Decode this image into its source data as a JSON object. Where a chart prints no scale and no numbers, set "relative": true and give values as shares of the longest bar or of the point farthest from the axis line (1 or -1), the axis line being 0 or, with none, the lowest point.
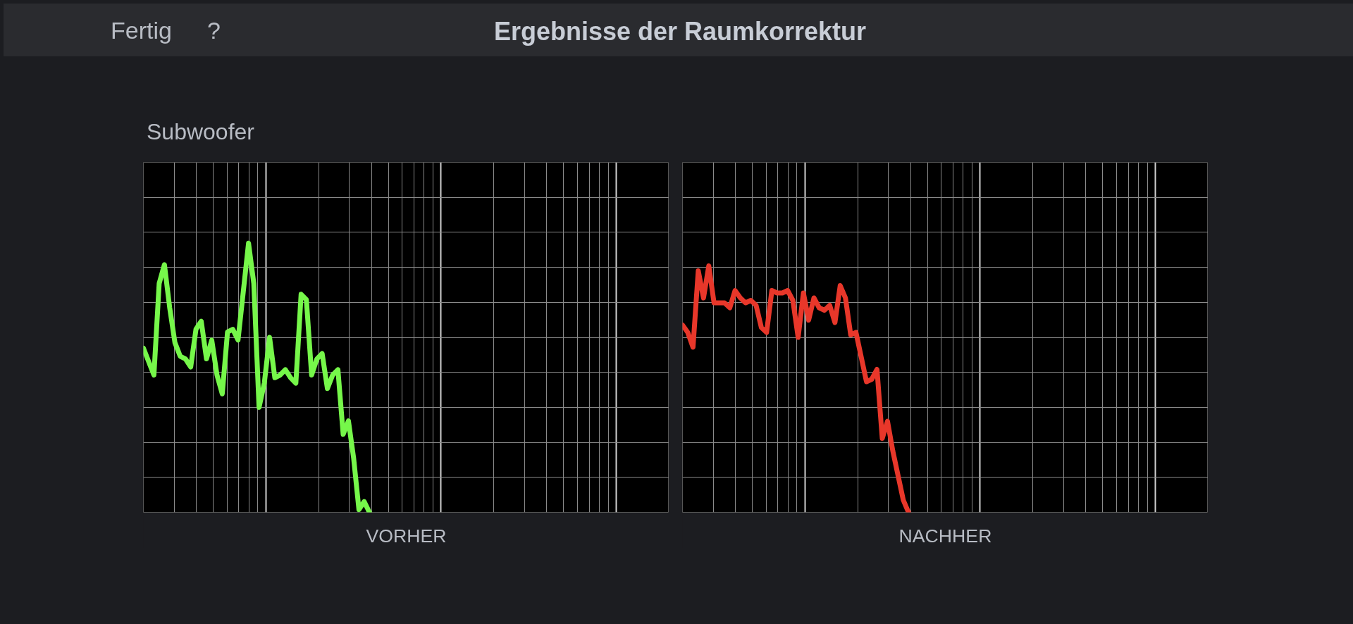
{
  "chart_data": [
    {
      "type": "line",
      "title": "Ergebnisse der Raumkorrektur",
      "subtitle": "Subwoofer",
      "annotations": [
        "Fertig",
        "?"
      ],
      "xlabel": "VORHER",
      "relative": true,
      "grid": true,
      "categories": [
        null,
        null,
        null,
        null,
        null,
        null,
        null,
        null,
        null,
        null,
        null,
        null,
        null,
        null,
        null,
        null,
        null,
        null,
        null,
        null,
        null,
        null,
        null,
        null,
        null,
        null,
        null,
        null,
        null,
        null,
        null,
        null,
        null,
        null,
        null,
        null,
        null,
        null,
        null,
        null,
        null,
        null,
        null,
        null,
        null,
        null,
        null,
        null,
        null,
        null,
        null,
        null,
        null,
        null,
        null,
        null,
        null,
        null,
        null,
        null,
        null,
        null,
        null,
        null,
        null,
        null,
        null,
        null,
        null,
        null,
        null,
        null,
        null,
        null,
        null,
        null,
        null,
        null,
        null,
        null,
        null,
        null,
        null,
        null,
        null,
        null,
        null,
        null,
        null,
        null,
        null,
        null,
        null,
        null,
        null,
        null,
        null,
        null,
        null,
        null,
        null
      ],
      "series": [
        {
          "color": "#76f74a",
          "values": [
            0.61,
            0.56,
            0.51,
            0.85,
            0.92,
            0.76,
            0.63,
            0.58,
            0.57,
            0.54,
            0.68,
            0.71,
            0.57,
            0.64,
            0.51,
            0.44,
            0.67,
            0.68,
            0.64,
            0.82,
            1.0,
            0.85,
            0.39,
            0.48,
            0.65,
            0.5,
            0.51,
            0.53,
            0.5,
            0.48,
            0.81,
            0.79,
            0.51,
            0.57,
            0.59,
            0.46,
            0.51,
            0.53,
            0.29,
            0.34,
            0.2,
            0.01,
            0.04,
            0,
            null,
            null,
            null,
            null,
            null,
            null,
            null,
            null,
            null,
            null,
            null,
            null,
            null,
            null,
            null,
            null,
            null,
            null,
            null,
            null,
            null,
            null,
            null,
            null,
            null,
            null,
            null,
            null,
            null,
            null,
            null,
            null,
            null,
            null,
            null,
            null,
            null,
            null,
            null,
            null,
            null,
            null,
            null,
            null,
            null,
            null,
            null,
            null,
            null,
            null,
            null,
            null,
            null,
            null,
            null,
            null,
            null
          ]
        }
      ]
    },
    {
      "type": "line",
      "xlabel": "NACHHER",
      "relative": true,
      "grid": true,
      "categories": [
        null,
        null,
        null,
        null,
        null,
        null,
        null,
        null,
        null,
        null,
        null,
        null,
        null,
        null,
        null,
        null,
        null,
        null,
        null,
        null,
        null,
        null,
        null,
        null,
        null,
        null,
        null,
        null,
        null,
        null,
        null,
        null,
        null,
        null,
        null,
        null,
        null,
        null,
        null,
        null,
        null,
        null,
        null,
        null,
        null,
        null,
        null,
        null,
        null,
        null,
        null,
        null,
        null,
        null,
        null,
        null,
        null,
        null,
        null,
        null,
        null,
        null,
        null,
        null,
        null,
        null,
        null,
        null,
        null,
        null,
        null,
        null,
        null,
        null,
        null,
        null,
        null,
        null,
        null,
        null,
        null,
        null,
        null,
        null,
        null,
        null,
        null,
        null,
        null,
        null,
        null,
        null,
        null,
        null,
        null,
        null,
        null,
        null,
        null,
        null,
        null
      ],
      "series": [
        {
          "color": "#e8372a",
          "values": [
            0.76,
            0.73,
            0.67,
            0.98,
            0.87,
            1.0,
            0.85,
            0.85,
            0.85,
            0.83,
            0.9,
            0.87,
            0.85,
            0.86,
            0.84,
            0.75,
            0.73,
            0.9,
            0.89,
            0.89,
            0.9,
            0.86,
            0.71,
            0.89,
            0.78,
            0.87,
            0.83,
            0.82,
            0.84,
            0.77,
            0.92,
            0.87,
            0.72,
            0.73,
            0.63,
            0.53,
            0.54,
            0.58,
            0.3,
            0.37,
            0.25,
            0.15,
            0.05,
            0,
            null,
            null,
            null,
            null,
            null,
            null,
            null,
            null,
            null,
            null,
            null,
            null,
            null,
            null,
            null,
            null,
            null,
            null,
            null,
            null,
            null,
            null,
            null,
            null,
            null,
            null,
            null,
            null,
            null,
            null,
            null,
            null,
            null,
            null,
            null,
            null,
            null,
            null,
            null,
            null,
            null,
            null,
            null,
            null,
            null,
            null,
            null,
            null,
            null,
            null,
            null,
            null,
            null,
            null,
            null,
            null,
            null
          ]
        }
      ]
    }
  ]
}
